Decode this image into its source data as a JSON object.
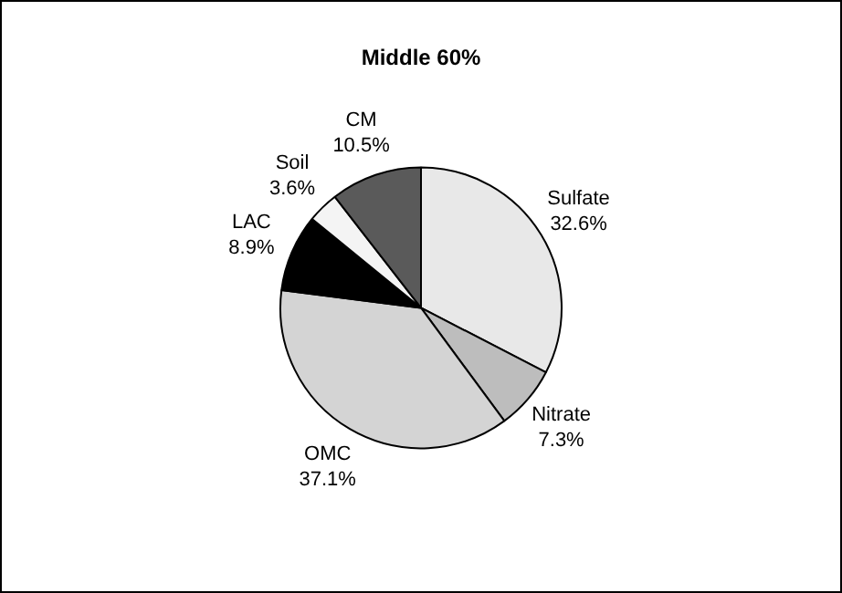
{
  "chart_data": {
    "type": "pie",
    "title": "Middle 60%",
    "categories": [
      "Sulfate",
      "Nitrate",
      "OMC",
      "LAC",
      "Soil",
      "CM"
    ],
    "values": [
      32.6,
      7.3,
      37.1,
      8.9,
      3.6,
      10.5
    ],
    "value_labels": [
      "32.6%",
      "7.3%",
      "37.1%",
      "8.9%",
      "3.6%",
      "10.5%"
    ],
    "colors": [
      "#e8e8e8",
      "#bdbdbd",
      "#d4d4d4",
      "#000000",
      "#f4f4f4",
      "#5a5a5a"
    ],
    "legend": false
  }
}
